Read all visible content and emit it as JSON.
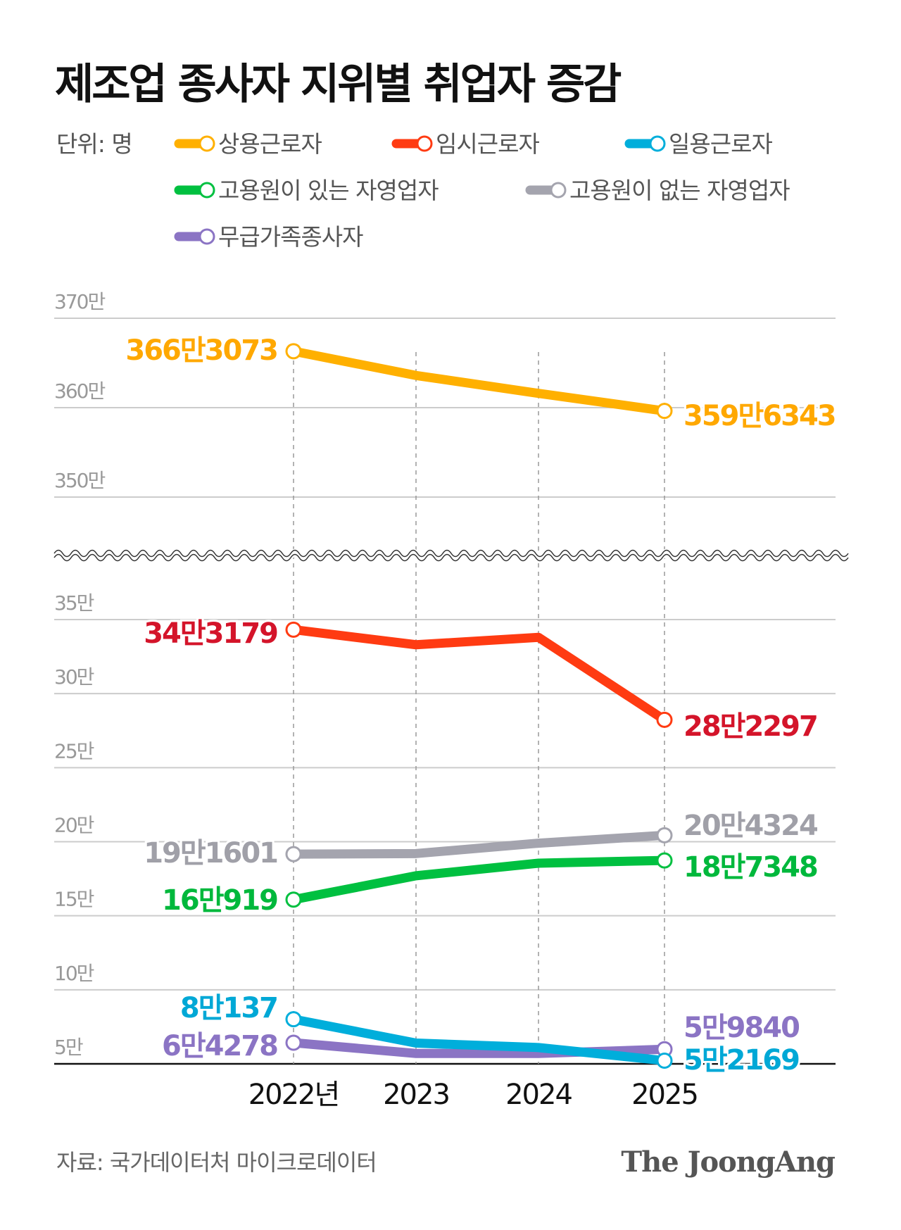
{
  "title": "제조업 종사자 지위별 취업자 증감",
  "unit_label": "단위: 명",
  "source": "자료: 국가데이터처 마이크로데이터",
  "logo": "The JoongAng",
  "chart_data": {
    "type": "line",
    "title": "제조업 종사자 지위별 취업자 증감",
    "unit": "명",
    "categories": [
      "2022년",
      "2023",
      "2024",
      "2025"
    ],
    "y_axis": {
      "broken": true,
      "upper_segment": {
        "ylim": [
          3450000,
          3700000
        ],
        "ticks": [
          "350만",
          "360만",
          "370만"
        ]
      },
      "lower_segment": {
        "ylim": [
          50000,
          350000
        ],
        "ticks": [
          "5만",
          "10만",
          "15만",
          "20만",
          "25만",
          "30만",
          "35만"
        ]
      }
    },
    "grid": true,
    "legend_placement": "top",
    "series": [
      {
        "name": "상용근로자",
        "color": "#FFB000",
        "label_color": "#FFA800",
        "segment": "upper",
        "values": [
          3663073,
          3636000,
          3616000,
          3596343
        ],
        "first_label": "366만3073",
        "last_label": "359만6343"
      },
      {
        "name": "임시근로자",
        "color": "#FF3B12",
        "label_color": "#D4142A",
        "segment": "lower",
        "values": [
          343179,
          333000,
          338000,
          282297
        ],
        "first_label": "34만3179",
        "last_label": "28만2297"
      },
      {
        "name": "일용근로자",
        "color": "#00AEDB",
        "label_color": "#00A8D6",
        "segment": "lower",
        "values": [
          80137,
          64000,
          61000,
          52169
        ],
        "first_label": "8만137",
        "last_label": "5만2169"
      },
      {
        "name": "고용원이 있는 자영업자",
        "color": "#00C040",
        "label_color": "#00B83C",
        "segment": "lower",
        "values": [
          160919,
          177000,
          185500,
          187348
        ],
        "first_label": "16만919",
        "last_label": "18만7348"
      },
      {
        "name": "고용원이 없는 자영업자",
        "color": "#A4A4AE",
        "label_color": "#A0A0A8",
        "segment": "lower",
        "values": [
          191601,
          192000,
          199000,
          204324
        ],
        "first_label": "19만1601",
        "last_label": "20만4324"
      },
      {
        "name": "무급가족종사자",
        "color": "#8B74C4",
        "label_color": "#8B74C4",
        "segment": "lower",
        "values": [
          64278,
          57000,
          57000,
          59840
        ],
        "first_label": "6만4278",
        "last_label": "5만9840"
      }
    ]
  }
}
